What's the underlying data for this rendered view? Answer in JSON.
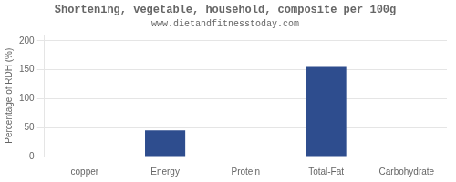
{
  "chart_data": {
    "type": "bar",
    "title": "Shortening, vegetable, household, composite per 100g",
    "subtitle": "www.dietandfitnesstoday.com",
    "categories": [
      "copper",
      "Energy",
      "Protein",
      "Total-Fat",
      "Carbohydrate"
    ],
    "values": [
      0,
      45,
      0,
      155,
      0
    ],
    "color": "#2e4d8e",
    "ylabel": "Percentage of RDH (%)",
    "ylim": [
      0,
      210
    ],
    "yticks": [
      0,
      50,
      100,
      150,
      200
    ],
    "grid": true
  }
}
